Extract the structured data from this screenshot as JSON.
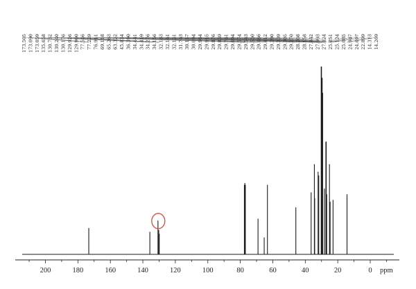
{
  "chart_data": {
    "type": "line",
    "title": "",
    "xlabel": "ppm",
    "ylabel": "",
    "x_reversed": true,
    "xlim": [
      220,
      -10
    ],
    "xticks": [
      200,
      180,
      160,
      140,
      120,
      100,
      80,
      60,
      40,
      20,
      0
    ],
    "grid": false,
    "legend": "none",
    "peak_labels": [
      "173.505",
      "173.090",
      "173.059",
      "135.658",
      "130.732",
      "130.240",
      "130.176",
      "129.926",
      "129.900",
      "77.546",
      "77.229",
      "76.911",
      "69.118",
      "65.263",
      "63.322",
      "45.834",
      "36.390",
      "34.441",
      "34.419",
      "34.276",
      "34.156",
      "32.183",
      "32.141",
      "32.121",
      "31.743",
      "30.117",
      "30.094",
      "29.984",
      "29.915",
      "29.876",
      "29.839",
      "29.741",
      "29.694",
      "29.574",
      "29.543",
      "29.530",
      "29.486",
      "29.412",
      "29.390",
      "29.339",
      "29.305",
      "29.270",
      "28.208",
      "28.158",
      "27.442",
      "27.093",
      "27.024",
      "25.851",
      "25.124",
      "25.085",
      "24.947",
      "24.697",
      "22.899",
      "14.313",
      "14.269"
    ],
    "peaks": [
      {
        "x": 173.3,
        "y": 0.14
      },
      {
        "x": 135.7,
        "y": 0.12
      },
      {
        "x": 130.7,
        "y": 0.18
      },
      {
        "x": 130.2,
        "y": 0.13
      },
      {
        "x": 129.9,
        "y": 0.11
      },
      {
        "x": 77.5,
        "y": 0.37
      },
      {
        "x": 77.2,
        "y": 0.38
      },
      {
        "x": 76.9,
        "y": 0.37
      },
      {
        "x": 69.1,
        "y": 0.19
      },
      {
        "x": 65.3,
        "y": 0.09
      },
      {
        "x": 63.3,
        "y": 0.37
      },
      {
        "x": 45.8,
        "y": 0.25
      },
      {
        "x": 36.4,
        "y": 0.33
      },
      {
        "x": 34.4,
        "y": 0.48
      },
      {
        "x": 34.2,
        "y": 0.3
      },
      {
        "x": 32.1,
        "y": 0.44
      },
      {
        "x": 31.7,
        "y": 0.42
      },
      {
        "x": 30.1,
        "y": 1.0
      },
      {
        "x": 29.7,
        "y": 0.94
      },
      {
        "x": 29.4,
        "y": 0.86
      },
      {
        "x": 28.2,
        "y": 0.35
      },
      {
        "x": 27.2,
        "y": 0.6
      },
      {
        "x": 26.8,
        "y": 0.32
      },
      {
        "x": 25.1,
        "y": 0.48
      },
      {
        "x": 24.7,
        "y": 0.28
      },
      {
        "x": 22.9,
        "y": 0.29
      },
      {
        "x": 14.3,
        "y": 0.32
      }
    ],
    "annotations": [
      {
        "type": "ellipse",
        "x": 130.5,
        "y": 0.17,
        "color": "#d94a3d"
      }
    ],
    "colors": {
      "spectrum": "#1a1a1a",
      "leader_lines": "#6e6e6e",
      "highlight": "#d94a3d"
    }
  }
}
